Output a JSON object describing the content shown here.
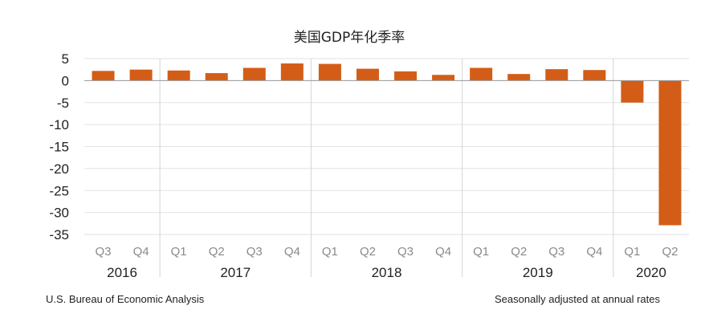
{
  "chart_data": {
    "type": "bar",
    "title": "美国GDP年化季率",
    "categories": [
      "Q3",
      "Q4",
      "Q1",
      "Q2",
      "Q3",
      "Q4",
      "Q1",
      "Q2",
      "Q3",
      "Q4",
      "Q1",
      "Q2",
      "Q3",
      "Q4",
      "Q1",
      "Q2"
    ],
    "years": [
      {
        "label": "2016",
        "span": 2
      },
      {
        "label": "2017",
        "span": 4
      },
      {
        "label": "2018",
        "span": 4
      },
      {
        "label": "2019",
        "span": 4
      },
      {
        "label": "2020",
        "span": 2
      }
    ],
    "series": [
      {
        "values": [
          2.2,
          2.5,
          2.3,
          1.7,
          2.9,
          3.9,
          3.8,
          2.7,
          2.1,
          1.3,
          2.9,
          1.5,
          2.6,
          2.4,
          -5.0,
          -32.9
        ]
      }
    ],
    "ylim": [
      -35,
      5
    ],
    "yticks": [
      5,
      0,
      -5,
      -10,
      -15,
      -20,
      -25,
      -30,
      -35
    ],
    "grid": true,
    "bar_color": "#d35d17",
    "source_note": "U.S. Bureau of Economic Analysis",
    "adjust_note": "Seasonally adjusted at annual rates"
  }
}
